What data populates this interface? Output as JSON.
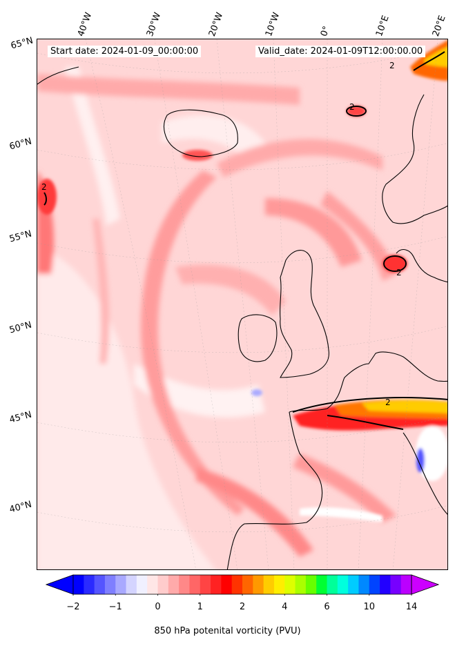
{
  "header": {
    "start_date": "Start date: 2024-01-09_00:00:00",
    "valid_date": "Valid_date: 2024-01-09T12:00:00.00"
  },
  "longitude_labels": [
    "40°W",
    "30°W",
    "20°W",
    "10°W",
    "0°",
    "10°E",
    "20°E"
  ],
  "latitude_labels": [
    "65°N",
    "60°N",
    "55°N",
    "50°N",
    "45°N",
    "40°N"
  ],
  "contour_label": "2",
  "colorbar": {
    "title": "850 hPa potenital vorticity (PVU)",
    "ticks": [
      "−2",
      "−1",
      "0",
      "1",
      "2",
      "4",
      "6",
      "10",
      "14"
    ],
    "colors": [
      "#0000ff",
      "#2a2aff",
      "#5555ff",
      "#7f7fff",
      "#a9a9ff",
      "#d4d4ff",
      "#f0f0ff",
      "#ffe6e6",
      "#ffcccc",
      "#ffaaaa",
      "#ff8888",
      "#ff6666",
      "#ff4444",
      "#ff2222",
      "#ff0000",
      "#ff3300",
      "#ff6600",
      "#ff9900",
      "#ffcc00",
      "#ffee00",
      "#ddff00",
      "#aaff00",
      "#66ff00",
      "#00ff33",
      "#00ff99",
      "#00ffdd",
      "#00ccff",
      "#0088ff",
      "#0044ff",
      "#2200ff",
      "#7700ff",
      "#bb00ff"
    ],
    "under_color": "#0000ff",
    "over_color": "#cc00ff"
  }
}
